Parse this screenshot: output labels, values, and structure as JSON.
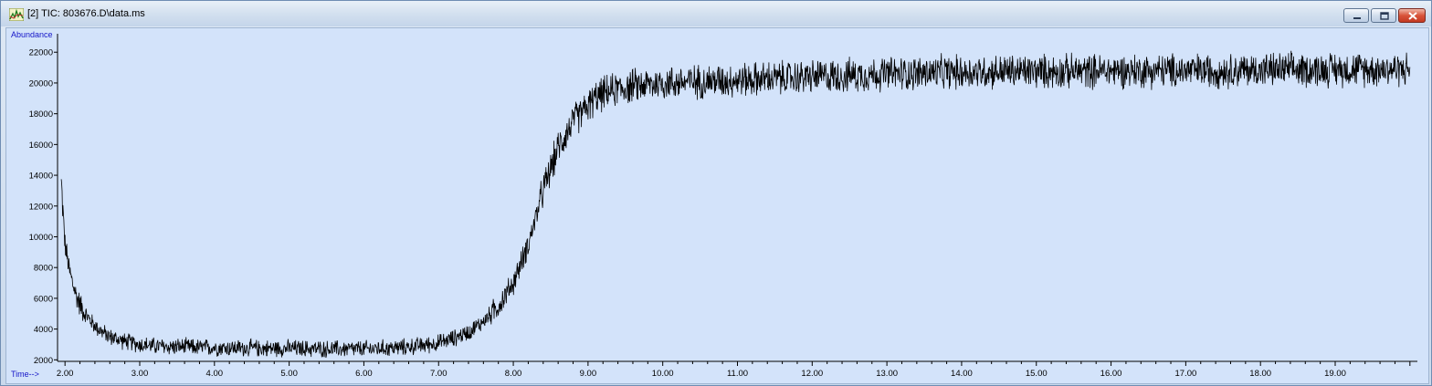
{
  "window": {
    "title": "[2] TIC: 803676.D\\data.ms"
  },
  "colors": {
    "plot_background": "#d3e3fa",
    "trace": "#000000",
    "axis_label": "#1515c8"
  },
  "chart_data": {
    "type": "line",
    "xlabel": "Time-->",
    "ylabel": "Abundance",
    "xlim": [
      1.9,
      20.1
    ],
    "ylim": [
      1900,
      23200
    ],
    "x_ticks": [
      "2.00",
      "3.00",
      "4.00",
      "5.00",
      "6.00",
      "7.00",
      "8.00",
      "9.00",
      "10.00",
      "11.00",
      "12.00",
      "13.00",
      "14.00",
      "15.00",
      "16.00",
      "17.00",
      "18.00",
      "19.00"
    ],
    "y_ticks": [
      "2000",
      "4000",
      "6000",
      "8000",
      "10000",
      "12000",
      "14000",
      "16000",
      "18000",
      "20000",
      "22000"
    ],
    "grid": false,
    "series": [
      {
        "x": [
          1.95,
          2.0,
          2.05,
          2.1,
          2.15,
          2.2,
          2.3,
          2.4,
          2.5,
          2.6,
          2.8,
          3.0,
          3.2,
          3.4,
          3.6,
          3.8,
          4.0,
          4.5,
          5.0,
          5.5,
          6.0,
          6.5,
          6.8,
          7.0,
          7.2,
          7.4,
          7.6,
          7.8,
          8.0,
          8.2,
          8.4,
          8.6,
          8.8,
          9.0,
          9.1,
          9.2,
          9.4,
          9.6,
          9.8,
          10.0,
          10.5,
          11.0,
          11.5,
          12.0,
          12.5,
          13.0,
          13.5,
          14.0,
          14.5,
          15.0,
          15.5,
          16.0,
          16.5,
          17.0,
          17.5,
          18.0,
          18.5,
          19.0,
          19.5,
          20.0
        ],
        "y": [
          13500,
          9500,
          8000,
          7000,
          6200,
          5600,
          4800,
          4200,
          3800,
          3500,
          3200,
          3000,
          2900,
          2850,
          2850,
          2800,
          2800,
          2750,
          2750,
          2700,
          2700,
          2800,
          2950,
          3100,
          3400,
          3800,
          4500,
          5500,
          7000,
          9500,
          13000,
          15800,
          17500,
          18500,
          19000,
          19300,
          19600,
          19800,
          19900,
          20000,
          20100,
          20200,
          20300,
          20400,
          20500,
          20600,
          20650,
          20700,
          20750,
          20750,
          20750,
          20800,
          20800,
          20800,
          20800,
          20850,
          20850,
          20900,
          20900,
          20900
        ]
      }
    ]
  }
}
